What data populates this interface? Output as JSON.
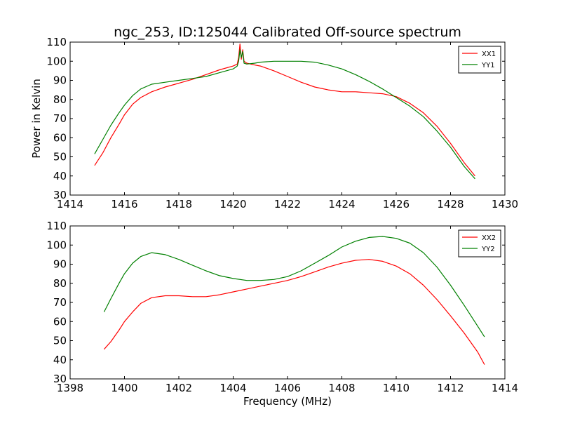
{
  "chart_data": [
    {
      "type": "line",
      "title": "ngc_253, ID:125044 Calibrated Off-source spectrum",
      "xlabel": "",
      "ylabel": "Power in Kelvin",
      "xlim": [
        1414,
        1430
      ],
      "ylim": [
        30,
        110
      ],
      "xticks": [
        1414,
        1416,
        1418,
        1420,
        1422,
        1424,
        1426,
        1428,
        1430
      ],
      "yticks": [
        30,
        40,
        50,
        60,
        70,
        80,
        90,
        100,
        110
      ],
      "grid": false,
      "legend": "top-right",
      "series": [
        {
          "name": "XX1",
          "color": "#ff0000",
          "x": [
            1414.9,
            1415.2,
            1415.5,
            1415.8,
            1416.0,
            1416.3,
            1416.6,
            1417.0,
            1417.5,
            1418.0,
            1418.5,
            1419.0,
            1419.5,
            1420.0,
            1420.15,
            1420.2,
            1420.25,
            1420.3,
            1420.35,
            1420.4,
            1420.5,
            1420.8,
            1421.0,
            1421.5,
            1422.0,
            1422.5,
            1423.0,
            1423.5,
            1424.0,
            1424.5,
            1425.0,
            1425.5,
            1426.0,
            1426.5,
            1427.0,
            1427.5,
            1428.0,
            1428.5,
            1428.9
          ],
          "values": [
            45.5,
            52,
            60,
            67,
            72,
            77.5,
            81,
            84,
            86.5,
            88.5,
            90.5,
            93,
            95.5,
            97.5,
            98.5,
            102,
            109,
            101,
            106,
            100,
            99,
            98,
            97.5,
            95,
            92,
            89,
            86.5,
            85,
            84,
            84,
            83.5,
            83,
            81.5,
            78,
            73,
            66,
            57,
            47,
            40
          ]
        },
        {
          "name": "YY1",
          "color": "#008000",
          "x": [
            1414.9,
            1415.2,
            1415.5,
            1415.8,
            1416.0,
            1416.3,
            1416.6,
            1417.0,
            1417.5,
            1418.0,
            1418.5,
            1419.0,
            1419.5,
            1420.0,
            1420.15,
            1420.2,
            1420.25,
            1420.3,
            1420.35,
            1420.4,
            1420.5,
            1420.8,
            1421.0,
            1421.5,
            1422.0,
            1422.5,
            1423.0,
            1423.5,
            1424.0,
            1424.5,
            1425.0,
            1425.5,
            1426.0,
            1426.5,
            1427.0,
            1427.5,
            1428.0,
            1428.5,
            1428.9
          ],
          "values": [
            51.5,
            59,
            66.5,
            73,
            77,
            82,
            85.5,
            88,
            89,
            90,
            91,
            92,
            94,
            96,
            97.5,
            100,
            106,
            102,
            105,
            99,
            98.5,
            99,
            99.5,
            100,
            100,
            100,
            99.5,
            98,
            96,
            93,
            89.5,
            85.5,
            81,
            76.5,
            71,
            63.5,
            55,
            45,
            38.5
          ]
        }
      ]
    },
    {
      "type": "line",
      "title": "",
      "xlabel": "Frequency (MHz)",
      "ylabel": "",
      "xlim": [
        1398,
        1414
      ],
      "ylim": [
        30,
        110
      ],
      "xticks": [
        1398,
        1400,
        1402,
        1404,
        1406,
        1408,
        1410,
        1412,
        1414
      ],
      "yticks": [
        30,
        40,
        50,
        60,
        70,
        80,
        90,
        100,
        110
      ],
      "grid": false,
      "legend": "top-right",
      "series": [
        {
          "name": "XX2",
          "color": "#ff0000",
          "x": [
            1399.25,
            1399.5,
            1399.8,
            1400.0,
            1400.3,
            1400.6,
            1401.0,
            1401.5,
            1402.0,
            1402.5,
            1403.0,
            1403.5,
            1404.0,
            1404.5,
            1405.0,
            1405.5,
            1406.0,
            1406.5,
            1407.0,
            1407.5,
            1408.0,
            1408.5,
            1409.0,
            1409.5,
            1410.0,
            1410.5,
            1411.0,
            1411.5,
            1412.0,
            1412.5,
            1413.0,
            1413.25
          ],
          "values": [
            45.5,
            49.5,
            55.5,
            60,
            65,
            69.5,
            72.5,
            73.5,
            73.5,
            73,
            73,
            74,
            75.5,
            77,
            78.5,
            80,
            81.5,
            83.5,
            86,
            88.5,
            90.5,
            92,
            92.5,
            91.5,
            89,
            85,
            79,
            71.5,
            63,
            54,
            44,
            37.5
          ]
        },
        {
          "name": "YY2",
          "color": "#008000",
          "x": [
            1399.25,
            1399.5,
            1399.8,
            1400.0,
            1400.3,
            1400.6,
            1401.0,
            1401.5,
            1402.0,
            1402.5,
            1403.0,
            1403.5,
            1404.0,
            1404.5,
            1405.0,
            1405.5,
            1406.0,
            1406.5,
            1407.0,
            1407.5,
            1408.0,
            1408.5,
            1409.0,
            1409.5,
            1410.0,
            1410.5,
            1411.0,
            1411.5,
            1412.0,
            1412.5,
            1413.0,
            1413.25
          ],
          "values": [
            65,
            72,
            80,
            85,
            90.5,
            94,
            96,
            95,
            92.5,
            89.5,
            86.5,
            84,
            82.5,
            81.5,
            81.5,
            82,
            83.5,
            86.5,
            90.5,
            94.5,
            99,
            102,
            104,
            104.5,
            103.5,
            101,
            96,
            88.5,
            79,
            68.5,
            57.5,
            52
          ]
        }
      ]
    }
  ]
}
